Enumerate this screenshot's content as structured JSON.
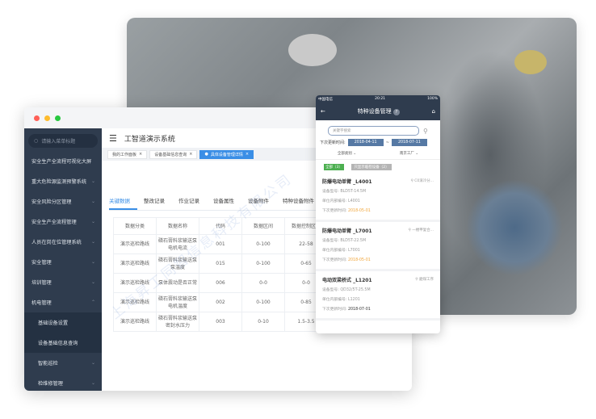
{
  "colors": {
    "sidebar": "#2f3c4e",
    "accent": "#3a8ee6",
    "phone_header": "#2f3c4e",
    "date_box": "#5679a4",
    "green": "#4caf50",
    "orange": "#f0a53a"
  },
  "watermark": "上海昇工同智信息科技有限公司",
  "desktop": {
    "search_placeholder": "请输入菜单标题",
    "app_title": "工智道演示系统",
    "menu": [
      {
        "label": "安全生产全流程可视化大屏",
        "chevron": ""
      },
      {
        "label": "重大危险源监测预警系统",
        "chevron": "⌄"
      },
      {
        "label": "安全风险分区管理",
        "chevron": "⌄"
      },
      {
        "label": "安全生产全流程管理",
        "chevron": "⌄"
      },
      {
        "label": "人员在岗在位管理系统",
        "chevron": "⌄"
      },
      {
        "label": "安全管理",
        "chevron": "⌄"
      },
      {
        "label": "培训管理",
        "chevron": "⌄"
      },
      {
        "label": "机电管理",
        "chevron": "⌃"
      }
    ],
    "submenu": [
      {
        "label": "基础设备设置"
      },
      {
        "label": "设备基础信息查询"
      }
    ],
    "submenu2": [
      {
        "label": "智能巡检",
        "chevron": "⌄"
      },
      {
        "label": "检维修管理",
        "chevron": "⌄"
      }
    ],
    "page_tags": [
      {
        "label": "我的工作面板",
        "active": false
      },
      {
        "label": "设备基础信息查询",
        "active": false
      },
      {
        "label": "具体设备管理详情",
        "active": true
      }
    ],
    "tabs": [
      {
        "label": "关键数据",
        "active": true
      },
      {
        "label": "整改记录"
      },
      {
        "label": "作业记录"
      },
      {
        "label": "设备属性"
      },
      {
        "label": "设备附件"
      },
      {
        "label": "特种设备附件"
      }
    ],
    "table": {
      "columns": [
        "数据分类",
        "数据名称",
        "代码",
        "数据区间",
        "数据控制区间"
      ],
      "rows": [
        [
          "演示巡检路线",
          "磷石膏料浆输送泵电机电流",
          "001",
          "0-100",
          "22-58"
        ],
        [
          "演示巡检路线",
          "磷石膏料浆输送泵泵温度",
          "015",
          "0-100",
          "0-65"
        ],
        [
          "演示巡检路线",
          "泵体震动是否正常",
          "006",
          "0-0",
          "0-0"
        ],
        [
          "演示巡检路线",
          "磷石膏料浆输送泵电机温度",
          "002",
          "0-100",
          "0-85"
        ],
        [
          "演示巡检路线",
          "磷石膏料浆输送泵密封水压力",
          "003",
          "0-10",
          "1.5-3.5"
        ]
      ]
    }
  },
  "phone": {
    "status": {
      "carrier": "中国电信",
      "time": "20:21",
      "battery": "100%"
    },
    "title": "特种设备管理",
    "badge": "?",
    "search_placeholder": "关键字搜索",
    "date_label": "下次更新时间:",
    "date_from": "2018-04-11",
    "date_sep": "~",
    "date_to": "2018-07-11",
    "filter_category": "全部类别",
    "filter_factory": "南京工厂",
    "btn_all": "全部（3）",
    "btn_only": "只显示临检设备（2）",
    "cards": [
      {
        "title": "防爆电动单臂 _L4001",
        "location": "C0滚冷分...",
        "model_label": "设备型号:",
        "model": "BLD5T-14.5M",
        "code_label": "单位内部编号:",
        "code": "L4001",
        "next_label": "下次更新时间:",
        "next": "2018-05-01",
        "overdue": true
      },
      {
        "title": "防爆电动单臂 _L7001",
        "location": "一楼甲复合...",
        "model_label": "设备型号:",
        "model": "BLD5T-22.5M",
        "code_label": "单位内部编号:",
        "code": "L7001",
        "next_label": "下次更新时间:",
        "next": "2018-05-01",
        "overdue": true
      },
      {
        "title": "电动双梁桥式 _L1201",
        "location": "磨煤工序",
        "model_label": "设备型号:",
        "model": "QD32/5T-25.5M",
        "code_label": "单位内部编号:",
        "code": "L1201",
        "next_label": "下次更新时间:",
        "next": "2018-07-01",
        "overdue": false
      }
    ]
  }
}
